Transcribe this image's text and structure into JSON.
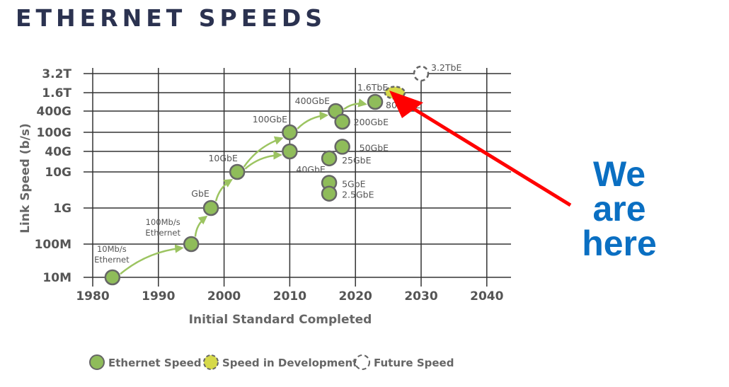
{
  "title": "ETHERNET SPEEDS",
  "callout": {
    "lines": [
      "We",
      "are",
      "here"
    ],
    "color": "#0a6fc2",
    "arrow_color": "#ff0000"
  },
  "chart_data": {
    "type": "scatter",
    "title": "ETHERNET SPEEDS",
    "xlabel": "Initial Standard Completed",
    "ylabel": "Link Speed (b/s)",
    "xlim": [
      1980,
      2040
    ],
    "x_ticks": [
      1980,
      1990,
      2000,
      2010,
      2020,
      2030,
      2040
    ],
    "y_scale": "categorical-log",
    "y_ticks": [
      {
        "label": "10M",
        "value": 10000000.0
      },
      {
        "label": "100M",
        "value": 100000000.0
      },
      {
        "label": "1G",
        "value": 1000000000.0
      },
      {
        "label": "10G",
        "value": 10000000000.0
      },
      {
        "label": "40G",
        "value": 40000000000.0
      },
      {
        "label": "100G",
        "value": 100000000000.0
      },
      {
        "label": "400G",
        "value": 400000000000.0
      },
      {
        "label": "1.6T",
        "value": 1600000000000.0
      },
      {
        "label": "3.2T",
        "value": 3200000000000.0
      }
    ],
    "grid": true,
    "legend_position": "bottom",
    "legend": [
      {
        "label": "Ethernet Speed",
        "status": "standard"
      },
      {
        "label": "Speed in Development",
        "status": "development"
      },
      {
        "label": "Future Speed",
        "status": "future"
      }
    ],
    "colors": {
      "standard": "#8fbc5a",
      "development": "#d6d94a",
      "outline": "#666666",
      "arrow": "#9cc461",
      "grid": "#333333"
    },
    "points": [
      {
        "label": "10Mb/s Ethernet",
        "year": 1983,
        "speed": 10000000.0,
        "status": "standard"
      },
      {
        "label": "100Mb/s Ethernet",
        "year": 1995,
        "speed": 100000000.0,
        "status": "standard"
      },
      {
        "label": "GbE",
        "year": 1998,
        "speed": 1000000000.0,
        "status": "standard"
      },
      {
        "label": "10GbE",
        "year": 2002,
        "speed": 10000000000.0,
        "status": "standard"
      },
      {
        "label": "100GbE",
        "year": 2010,
        "speed": 100000000000.0,
        "status": "standard"
      },
      {
        "label": "40GbE",
        "year": 2010,
        "speed": 40000000000.0,
        "status": "standard"
      },
      {
        "label": "400GbE",
        "year": 2017,
        "speed": 400000000000.0,
        "status": "standard"
      },
      {
        "label": "200GbE",
        "year": 2018,
        "speed": 200000000000.0,
        "status": "standard"
      },
      {
        "label": "50GbE",
        "year": 2018,
        "speed": 50000000000.0,
        "status": "standard"
      },
      {
        "label": "25GbE",
        "year": 2016,
        "speed": 25000000000.0,
        "status": "standard"
      },
      {
        "label": "5GbE",
        "year": 2016,
        "speed": 5000000000.0,
        "status": "standard"
      },
      {
        "label": "2.5GbE",
        "year": 2016,
        "speed": 2500000000.0,
        "status": "standard"
      },
      {
        "label": "800GbE",
        "year": 2023,
        "speed": 800000000000.0,
        "status": "standard"
      },
      {
        "label": "1.6TbE",
        "year": 2026,
        "speed": 1600000000000.0,
        "status": "development"
      },
      {
        "label": "3.2TbE",
        "year": 2030,
        "speed": 3200000000000.0,
        "status": "future"
      }
    ],
    "progressions": [
      [
        0,
        1
      ],
      [
        1,
        2
      ],
      [
        2,
        3
      ],
      [
        3,
        4
      ],
      [
        3,
        5
      ],
      [
        4,
        6
      ],
      [
        6,
        12
      ]
    ]
  }
}
